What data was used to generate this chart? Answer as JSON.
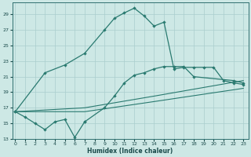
{
  "xlabel": "Humidex (Indice chaleur)",
  "bg_color": "#cde8e5",
  "line_color": "#2a7a70",
  "grid_color": "#aacece",
  "xticks": [
    0,
    1,
    2,
    3,
    4,
    5,
    6,
    7,
    8,
    9,
    10,
    11,
    12,
    13,
    14,
    15,
    16,
    17,
    18,
    19,
    20,
    21,
    22,
    23
  ],
  "yticks": [
    13,
    15,
    17,
    19,
    21,
    23,
    25,
    27,
    29
  ],
  "xlim": [
    -0.3,
    23.5
  ],
  "ylim": [
    13,
    30.5
  ],
  "line1_x": [
    0,
    1,
    2,
    3,
    4,
    5,
    6,
    7
  ],
  "line1_y": [
    16.5,
    15.8,
    15.0,
    14.2,
    15.2,
    15.5,
    13.2,
    15.2
  ],
  "line2_x": [
    0,
    3,
    5,
    7,
    9,
    10,
    11,
    12,
    13,
    14,
    15,
    16,
    17,
    18,
    19,
    20,
    21,
    22,
    23
  ],
  "line2_y": [
    16.5,
    21.5,
    22.5,
    24.0,
    27.0,
    28.5,
    29.2,
    29.8,
    28.8,
    27.5,
    28.0,
    22.0,
    22.2,
    22.2,
    22.2,
    22.2,
    20.5,
    20.2,
    20.0
  ],
  "line3_x": [
    0,
    7,
    14,
    23
  ],
  "line3_y": [
    16.5,
    16.5,
    17.8,
    19.5
  ],
  "line4_x": [
    0,
    7,
    14,
    23
  ],
  "line4_y": [
    16.5,
    17.0,
    18.5,
    20.5
  ],
  "line5_x": [
    7,
    9,
    10,
    11,
    12,
    13,
    14,
    15,
    16,
    17,
    18,
    22,
    23
  ],
  "line5_y": [
    15.2,
    17.0,
    18.5,
    20.2,
    21.2,
    21.5,
    22.0,
    22.3,
    22.3,
    22.3,
    21.0,
    20.5,
    20.2
  ]
}
